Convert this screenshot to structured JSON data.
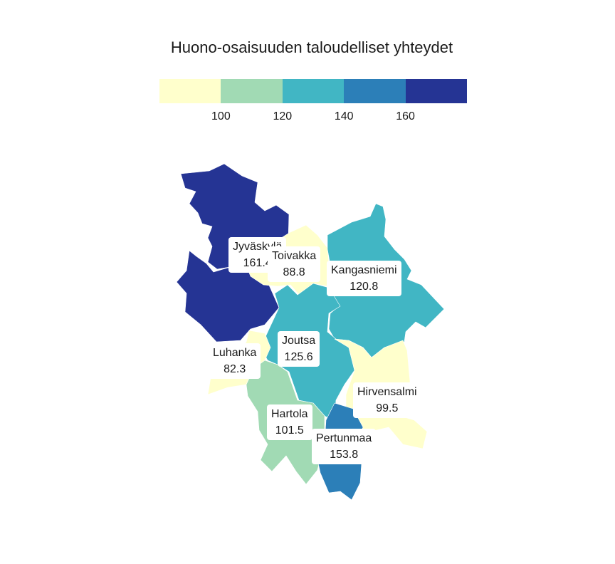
{
  "title": "Huono-osaisuuden taloudelliset yhteydet",
  "legend": {
    "colors": [
      "#ffffcc",
      "#a1dab4",
      "#41b6c4",
      "#2c7fb8",
      "#253494"
    ],
    "ticks": [
      "100",
      "120",
      "140",
      "160"
    ]
  },
  "regions": [
    {
      "name": "Jyväskylä",
      "value": "161.4"
    },
    {
      "name": "Toivakka",
      "value": "88.8"
    },
    {
      "name": "Kangasniemi",
      "value": "120.8"
    },
    {
      "name": "Luhanka",
      "value": "82.3"
    },
    {
      "name": "Joutsa",
      "value": "125.6"
    },
    {
      "name": "Hirvensalmi",
      "value": "99.5"
    },
    {
      "name": "Hartola",
      "value": "101.5"
    },
    {
      "name": "Pertunmaa",
      "value": "153.8"
    }
  ]
}
